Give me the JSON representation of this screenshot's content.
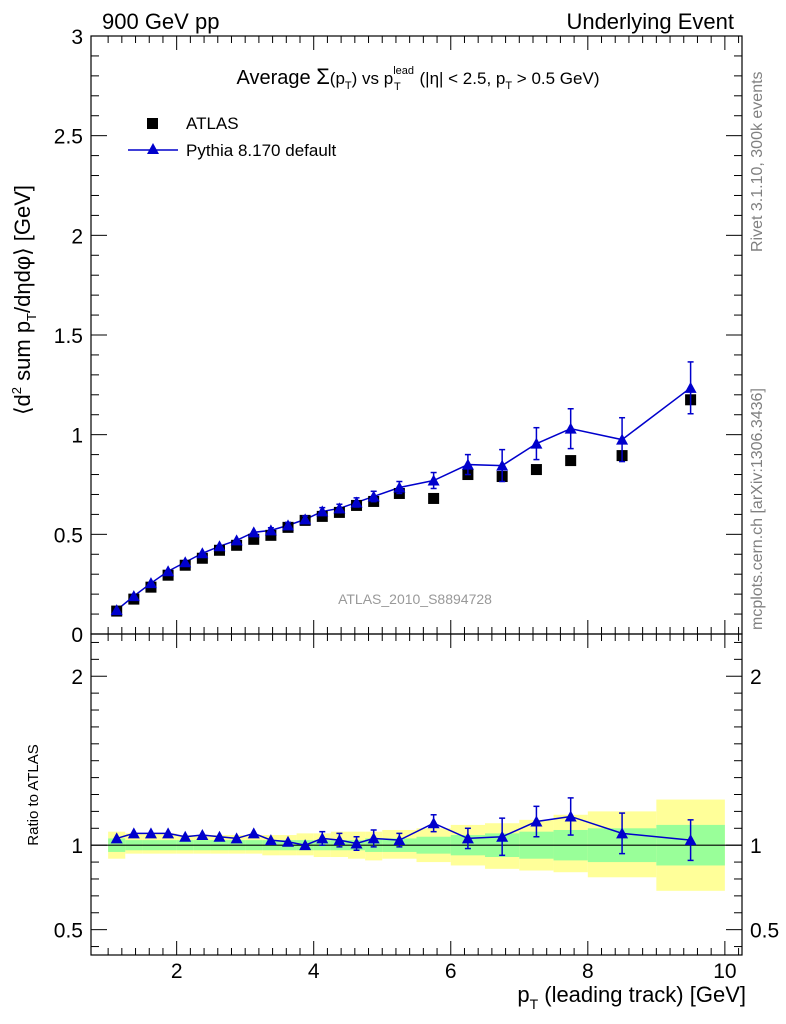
{
  "header": {
    "left": "900 GeV pp",
    "right": "Underlying Event"
  },
  "side_labels": {
    "top": "Rivet 3.1.10,  300k events",
    "bottom": "mcplots.cern.ch [arXiv:1306.3436]"
  },
  "watermark": "ATLAS_2010_S8894728",
  "chart_data": [
    {
      "type": "scatter",
      "title": {
        "prefix": "Average ",
        "sigma": "Σ",
        "arg": "(p",
        "arg_sub": "T",
        "arg_close": ")",
        "vs": " vs p",
        "vs_sup": "lead",
        "vs_sub": "T",
        "cond1": " (|η| < 2.5, p",
        "cond_sub": "T",
        "cond2": " > 0.5 GeV)"
      },
      "ylabel": {
        "open": "⟨d",
        "sup": "2",
        "mid": " sum p",
        "sub": "T",
        "end": "/dηdφ⟩ [GeV]"
      },
      "xlim": [
        0.75,
        10.25
      ],
      "ylim": [
        0,
        3
      ],
      "yticks": [
        "0",
        "0.5",
        "1",
        "1.5",
        "2",
        "2.5",
        "3"
      ],
      "legend": {
        "position": "top-left",
        "entries": [
          "ATLAS",
          "Pythia 8.170 default"
        ]
      },
      "series": [
        {
          "name": "ATLAS",
          "marker": "square",
          "color": "#000000",
          "x": [
            1.125,
            1.375,
            1.625,
            1.875,
            2.125,
            2.375,
            2.625,
            2.875,
            3.125,
            3.375,
            3.625,
            3.875,
            4.125,
            4.375,
            4.625,
            4.875,
            5.25,
            5.75,
            6.25,
            6.75,
            7.25,
            7.75,
            8.5,
            9.5
          ],
          "y": [
            0.115,
            0.175,
            0.235,
            0.295,
            0.345,
            0.38,
            0.42,
            0.445,
            0.475,
            0.495,
            0.535,
            0.57,
            0.59,
            0.61,
            0.645,
            0.665,
            0.705,
            0.68,
            0.8,
            0.79,
            0.825,
            0.87,
            0.895,
            1.175
          ]
        },
        {
          "name": "Pythia 8.170 default",
          "marker": "triangle",
          "color": "#0000cc",
          "x": [
            1.125,
            1.375,
            1.625,
            1.875,
            2.125,
            2.375,
            2.625,
            2.875,
            3.125,
            3.375,
            3.625,
            3.875,
            4.125,
            4.375,
            4.625,
            4.875,
            5.25,
            5.75,
            6.25,
            6.75,
            7.25,
            7.75,
            8.5,
            9.5
          ],
          "y": [
            0.12,
            0.19,
            0.255,
            0.315,
            0.36,
            0.405,
            0.44,
            0.47,
            0.51,
            0.52,
            0.545,
            0.575,
            0.615,
            0.63,
            0.66,
            0.69,
            0.735,
            0.77,
            0.85,
            0.845,
            0.955,
            1.03,
            0.975,
            1.235
          ],
          "yerr": [
            0.005,
            0.006,
            0.007,
            0.008,
            0.008,
            0.009,
            0.01,
            0.011,
            0.012,
            0.013,
            0.015,
            0.017,
            0.019,
            0.021,
            0.023,
            0.026,
            0.03,
            0.04,
            0.05,
            0.08,
            0.08,
            0.1,
            0.11,
            0.13
          ]
        }
      ]
    },
    {
      "type": "scatter",
      "ylabel": "Ratio to ATLAS",
      "xlabel": {
        "main": "p",
        "sub": "T",
        "rest": " (leading track) [GeV]"
      },
      "xlim": [
        0.75,
        10.25
      ],
      "ylim": [
        0.35,
        2.25
      ],
      "xticks": [
        "2",
        "4",
        "6",
        "8",
        "10"
      ],
      "yticks": [
        "0.5",
        "1",
        "2"
      ],
      "bands": {
        "edges": [
          1.0,
          1.25,
          1.5,
          1.75,
          2.0,
          2.25,
          2.5,
          2.75,
          3.0,
          3.25,
          3.5,
          3.75,
          4.0,
          4.25,
          4.5,
          4.75,
          5.0,
          5.5,
          6.0,
          6.5,
          7.0,
          7.5,
          8.0,
          9.0,
          10.0
        ],
        "green": {
          "color": "#99ff99",
          "lo": [
            0.96,
            0.97,
            0.97,
            0.97,
            0.97,
            0.97,
            0.97,
            0.97,
            0.97,
            0.97,
            0.97,
            0.97,
            0.97,
            0.97,
            0.97,
            0.96,
            0.96,
            0.95,
            0.94,
            0.93,
            0.92,
            0.91,
            0.9,
            0.88
          ],
          "hi": [
            1.04,
            1.03,
            1.03,
            1.03,
            1.03,
            1.03,
            1.03,
            1.03,
            1.03,
            1.03,
            1.03,
            1.03,
            1.03,
            1.03,
            1.03,
            1.04,
            1.04,
            1.05,
            1.06,
            1.07,
            1.08,
            1.09,
            1.1,
            1.12
          ]
        },
        "yellow": {
          "color": "#ffff99",
          "lo": [
            0.92,
            0.95,
            0.95,
            0.95,
            0.95,
            0.95,
            0.95,
            0.95,
            0.95,
            0.94,
            0.94,
            0.94,
            0.93,
            0.93,
            0.92,
            0.91,
            0.92,
            0.9,
            0.88,
            0.86,
            0.85,
            0.84,
            0.81,
            0.73
          ],
          "hi": [
            1.08,
            1.07,
            1.07,
            1.07,
            1.06,
            1.06,
            1.06,
            1.06,
            1.06,
            1.06,
            1.06,
            1.07,
            1.07,
            1.08,
            1.08,
            1.08,
            1.09,
            1.1,
            1.12,
            1.13,
            1.15,
            1.18,
            1.2,
            1.27
          ]
        }
      },
      "series": [
        {
          "name": "Pythia 8.170 default",
          "marker": "triangle",
          "color": "#0000cc",
          "x": [
            1.125,
            1.375,
            1.625,
            1.875,
            2.125,
            2.375,
            2.625,
            2.875,
            3.125,
            3.375,
            3.625,
            3.875,
            4.125,
            4.375,
            4.625,
            4.875,
            5.25,
            5.75,
            6.25,
            6.75,
            7.25,
            7.75,
            8.5,
            9.5
          ],
          "y": [
            1.04,
            1.07,
            1.07,
            1.07,
            1.05,
            1.06,
            1.05,
            1.04,
            1.07,
            1.03,
            1.02,
            1.0,
            1.04,
            1.03,
            1.01,
            1.04,
            1.03,
            1.13,
            1.04,
            1.05,
            1.14,
            1.17,
            1.07,
            1.03
          ],
          "yerr": [
            0.01,
            0.01,
            0.01,
            0.01,
            0.01,
            0.01,
            0.01,
            0.01,
            0.01,
            0.01,
            0.01,
            0.01,
            0.04,
            0.04,
            0.04,
            0.05,
            0.04,
            0.05,
            0.06,
            0.11,
            0.09,
            0.11,
            0.12,
            0.12
          ]
        }
      ]
    }
  ]
}
